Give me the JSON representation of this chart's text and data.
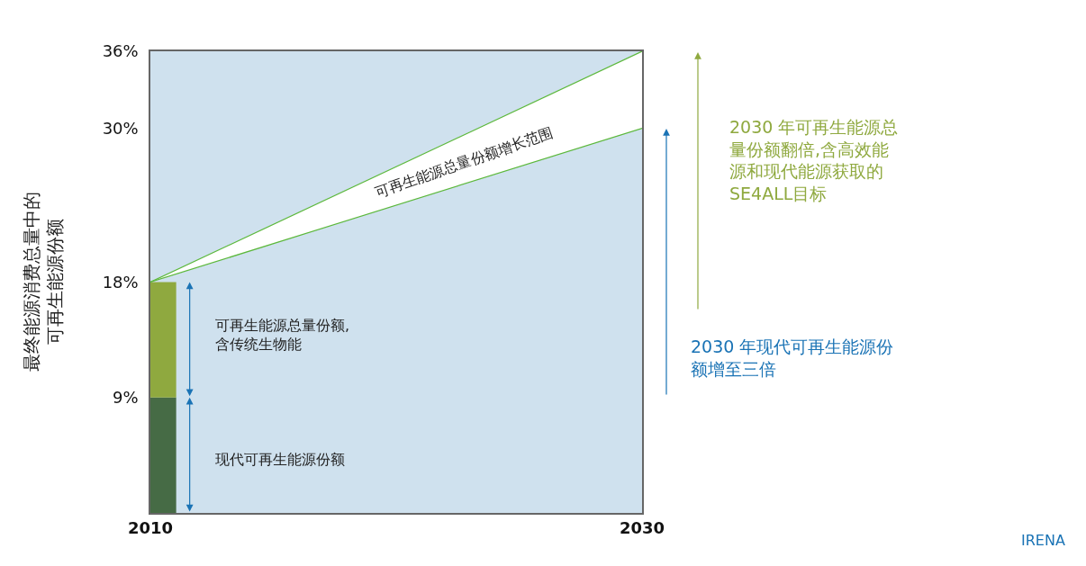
{
  "chart_data": {
    "type": "line",
    "ylabel": "最终能源消费总量中的可再生能源份额",
    "xlim": [
      2010,
      2030
    ],
    "xticks": [
      2010,
      2030
    ],
    "ylim": [
      0,
      36
    ],
    "yticks": [
      {
        "value": 9,
        "label": "9%"
      },
      {
        "value": 18,
        "label": "18%"
      },
      {
        "value": 30,
        "label": "30%"
      },
      {
        "value": 36,
        "label": "36%"
      }
    ],
    "stacked": true,
    "grid": false,
    "bands": [
      {
        "axis": "y",
        "from": 0,
        "to": 36,
        "color": "#cfe1ee"
      }
    ],
    "series": [
      {
        "type": "bar",
        "color": "#466b45",
        "x": [
          2010.5
        ],
        "values": [
          9
        ]
      },
      {
        "type": "bar",
        "color": "#8fa93f",
        "x": [
          2010.5
        ],
        "values": [
          9
        ]
      },
      {
        "color": "#5cb83c",
        "x": [
          2010,
          2030
        ],
        "values": [
          18,
          36
        ],
        "lower": [
          18,
          30
        ],
        "upper": [
          18,
          36
        ]
      },
      {
        "color": "#5cb83c",
        "x": [
          2010,
          2030
        ],
        "values": [
          18,
          30
        ]
      }
    ],
    "annotations": [
      "可再生能源总量份额增长范围",
      "可再生能源总量份额,含传统生物能",
      "现代可再生能源份额",
      "2030 年可再生能源总量份额翻倍,含高效能源和现代能源获取的 SE4ALL目标",
      "2030 年现代可再生能源份额增至三倍",
      "IRENA"
    ]
  }
}
